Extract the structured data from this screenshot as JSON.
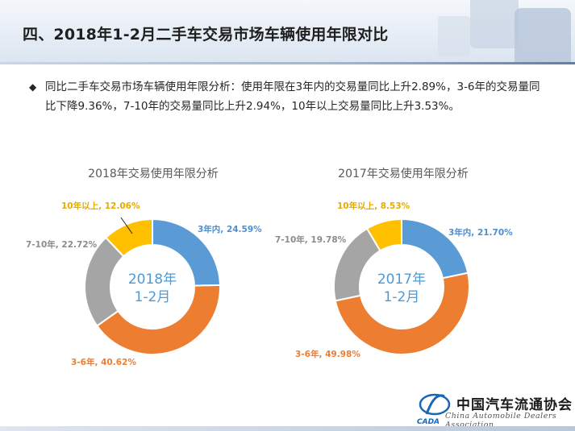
{
  "header": {
    "title": "四、2018年1-2月二手车交易市场车辆使用年限对比"
  },
  "summary": {
    "bullet": "◆",
    "text": "同比二手车交易市场车辆使用年限分析：使用年限在3年内的交易量同比上升2.89%，3-6年的交易量同比下降9.36%，7-10年的交易量同比上升2.94%，10年以上交易量同比上升3.53%。"
  },
  "chart_data": [
    {
      "type": "pie",
      "title": "2018年交易使用年限分析",
      "center_label": [
        "2018年",
        "1-2月"
      ],
      "categories": [
        "3年内",
        "3-6年",
        "7-10年",
        "10年以上"
      ],
      "values": [
        24.59,
        40.62,
        22.72,
        12.06
      ],
      "labels": [
        "3年内, 24.59%",
        "3-6年, 40.62%",
        "7-10年, 22.72%",
        "10年以上, 12.06%"
      ],
      "colors": [
        "#5b9bd5",
        "#ed7d31",
        "#a5a5a5",
        "#ffc000"
      ],
      "label_colors": [
        "#4f8fd0",
        "#ed7d31",
        "#8c8c8c",
        "#e6ac00"
      ],
      "donut": true
    },
    {
      "type": "pie",
      "title": "2017年交易使用年限分析",
      "center_label": [
        "2017年",
        "1-2月"
      ],
      "categories": [
        "3年内",
        "3-6年",
        "7-10年",
        "10年以上"
      ],
      "values": [
        21.7,
        49.98,
        19.78,
        8.53
      ],
      "labels": [
        "3年内, 21.70%",
        "3-6年, 49.98%",
        "7-10年, 19.78%",
        "10年以上, 8.53%"
      ],
      "colors": [
        "#5b9bd5",
        "#ed7d31",
        "#a5a5a5",
        "#ffc000"
      ],
      "label_colors": [
        "#4f8fd0",
        "#ed7d31",
        "#8c8c8c",
        "#e6ac00"
      ],
      "donut": true
    }
  ],
  "footer": {
    "logo_abbr": "CADA",
    "org_name_cn": "中国汽车流通协会",
    "org_name_en": "China Automobile Dealers Association"
  }
}
